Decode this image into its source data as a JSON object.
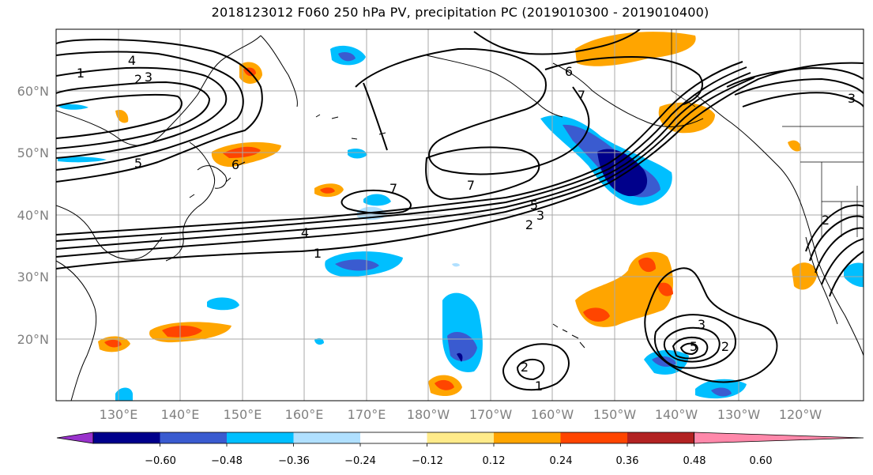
{
  "title": "2018123012 F060 250 hPa PV, precipitation PC (2019010300 - 2019010400)",
  "lat_labels": [
    "60°N",
    "50°N",
    "40°N",
    "30°N",
    "20°N"
  ],
  "lon_labels": [
    "130°E",
    "140°E",
    "150°E",
    "160°E",
    "170°E",
    "180°W",
    "170°W",
    "160°W",
    "150°W",
    "140°W",
    "130°W",
    "120°W"
  ],
  "colorbar": {
    "tick_labels": [
      "−0.60",
      "−0.48",
      "−0.36",
      "−0.24",
      "−0.12",
      "0.12",
      "0.24",
      "0.36",
      "0.48",
      "0.60"
    ],
    "colors": [
      "#9932cc",
      "#00008b",
      "#3a5bd0",
      "#00bfff",
      "#b0e0ff",
      "#ffffff",
      "#ffeb8a",
      "#ffa500",
      "#ff4500",
      "#b22222",
      "#ff88aa"
    ]
  },
  "contour_labels": [
    "1",
    "2",
    "3",
    "4",
    "5",
    "6",
    "7"
  ],
  "map_colors": {
    "land_outline": "#000000",
    "grid": "#a9a9a9",
    "contour": "#000000"
  }
}
